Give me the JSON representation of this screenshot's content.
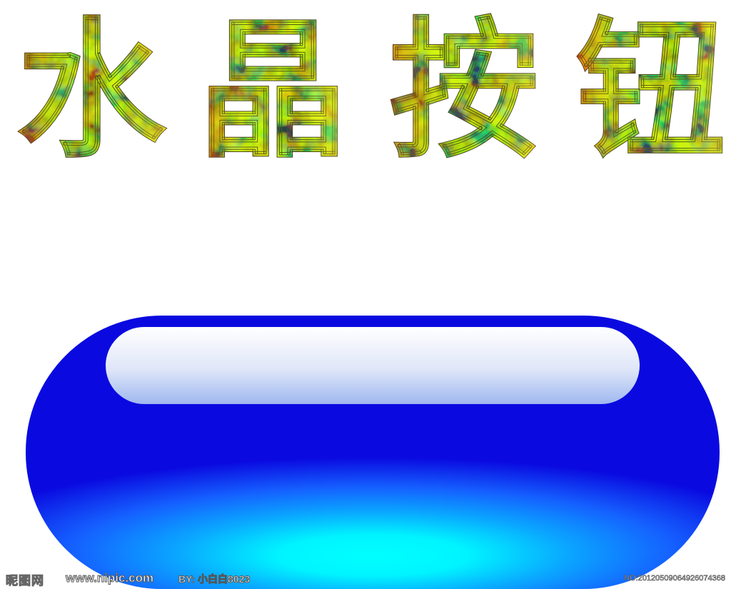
{
  "title": {
    "chars": [
      "水",
      "晶",
      "按",
      "钮"
    ]
  },
  "button": {
    "label": ""
  },
  "watermark": {
    "site_name": "昵图网",
    "url": "www.nipic.com",
    "author": "BY: 小白白8023",
    "number": "NO:20120509064926074368"
  },
  "colors": {
    "button_edge": "#0a0ae0",
    "button_mid": "#1e7bff",
    "button_core": "#00ffff",
    "highlight_top": "#ffffff",
    "highlight_bottom": "#9fb8f0",
    "texture_green": "#9be22c",
    "texture_orange": "#c8581c",
    "texture_dark": "#2a2410",
    "texture_yellow": "#f2e04a"
  }
}
